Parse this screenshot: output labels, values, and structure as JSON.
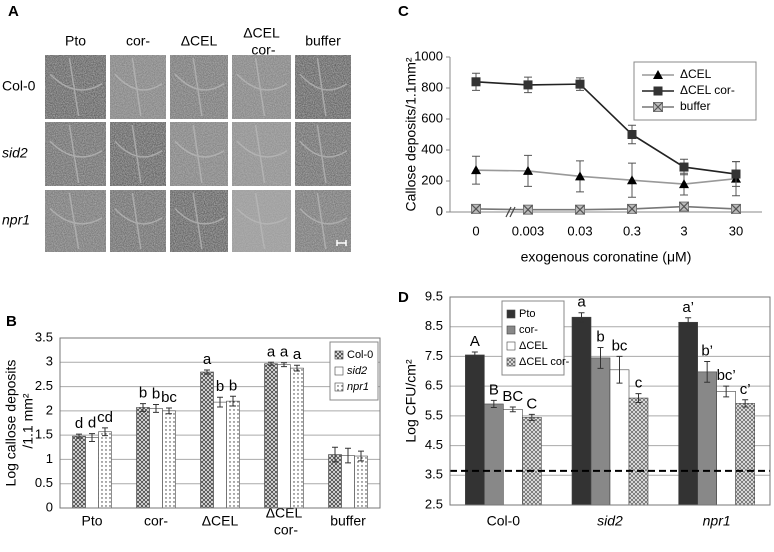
{
  "image_panel": {
    "panel": "A",
    "columns": [
      "Pto",
      "cor-",
      "ΔCEL",
      "ΔCEL cor-",
      "buffer"
    ],
    "rows": [
      "Col-0",
      "sid2",
      "npr1"
    ],
    "italic_rows": [
      false,
      true,
      true
    ]
  },
  "chart_data": [
    {
      "type": "bar",
      "panel": "B",
      "y_label": "Log callose deposits /1.1 mm²",
      "categories": [
        "Pto",
        "cor-",
        "ΔCEL",
        "ΔCEL cor-",
        "buffer"
      ],
      "ylim": [
        0,
        3.5
      ],
      "yticks": [
        0,
        0.5,
        1,
        1.5,
        2,
        2.5,
        3,
        3.5
      ],
      "grid": true,
      "legend": "top-right",
      "series": [
        {
          "name": "Col-0",
          "color": "#555555",
          "pattern": "crosshatch",
          "italic": false,
          "values": [
            1.48,
            2.07,
            2.8,
            2.97,
            1.1
          ],
          "errors": [
            0.04,
            0.08,
            0.04,
            0.03,
            0.15
          ],
          "letters": [
            "d",
            "b",
            "a",
            "a",
            null
          ]
        },
        {
          "name": "sid2",
          "color": "#ffffff",
          "pattern": "none",
          "italic": true,
          "values": [
            1.45,
            2.05,
            2.18,
            2.95,
            1.08
          ],
          "errors": [
            0.08,
            0.08,
            0.1,
            0.04,
            0.15
          ],
          "letters": [
            "d",
            "b",
            "b",
            "a",
            null
          ]
        },
        {
          "name": "npr1",
          "color": "#333333",
          "pattern": "dots",
          "italic": true,
          "values": [
            1.57,
            2.0,
            2.2,
            2.88,
            1.07
          ],
          "errors": [
            0.08,
            0.06,
            0.1,
            0.06,
            0.1
          ],
          "letters": [
            "cd",
            "bc",
            "b",
            "a",
            null
          ]
        }
      ]
    },
    {
      "type": "line",
      "panel": "C",
      "y_label": "Callose deposits/1.1mm²",
      "x_label": "exogenous coronatine (μM)",
      "categories": [
        "0",
        "0.003",
        "0.03",
        "0.3",
        "3",
        "30"
      ],
      "ylim": [
        0,
        1000
      ],
      "yticks": [
        0,
        200,
        400,
        600,
        800,
        1000
      ],
      "grid": false,
      "legend": "top-right",
      "series": [
        {
          "name": "ΔCEL",
          "color": "#999999",
          "marker": "triangle",
          "values": [
            270,
            265,
            230,
            205,
            180,
            215
          ],
          "errors": [
            90,
            100,
            100,
            110,
            70,
            110
          ]
        },
        {
          "name": "ΔCEL cor-",
          "color": "#222222",
          "marker": "square",
          "values": [
            840,
            820,
            825,
            500,
            290,
            245
          ],
          "errors": [
            55,
            50,
            40,
            60,
            50,
            80
          ]
        },
        {
          "name": "buffer",
          "color": "#777777",
          "marker": "xsquare",
          "values": [
            20,
            15,
            15,
            20,
            35,
            20
          ],
          "errors": [
            10,
            10,
            10,
            10,
            15,
            10
          ]
        }
      ]
    },
    {
      "type": "bar",
      "panel": "D",
      "y_label": "Log CFU/cm²",
      "categories": [
        "Col-0",
        "sid2",
        "npr1"
      ],
      "italic_categories": [
        false,
        true,
        true
      ],
      "ylim": [
        2.5,
        9.5
      ],
      "yticks": [
        2.5,
        3.5,
        4.5,
        5.5,
        6.5,
        7.5,
        8.5,
        9.5
      ],
      "grid": true,
      "legend": "top-left",
      "reference_line": 3.65,
      "series": [
        {
          "name": "Pto",
          "color": "#333333",
          "pattern": "none",
          "values": [
            7.55,
            8.82,
            8.65
          ],
          "errors": [
            0.1,
            0.15,
            0.15
          ],
          "letters": [
            "A",
            "a",
            "a’"
          ]
        },
        {
          "name": "cor-",
          "color": "#888888",
          "pattern": "none",
          "values": [
            5.9,
            7.45,
            6.98
          ],
          "errors": [
            0.12,
            0.35,
            0.35
          ],
          "letters": [
            "B",
            "b",
            "b’"
          ]
        },
        {
          "name": "ΔCEL",
          "color": "#ffffff",
          "pattern": "none",
          "values": [
            5.72,
            7.05,
            6.32
          ],
          "errors": [
            0.08,
            0.45,
            0.18
          ],
          "letters": [
            "BC",
            "bc",
            "bc’"
          ]
        },
        {
          "name": "ΔCEL cor-",
          "color": "#777777",
          "pattern": "crosshatch",
          "values": [
            5.45,
            6.1,
            5.92
          ],
          "errors": [
            0.1,
            0.15,
            0.12
          ],
          "letters": [
            "C",
            "c",
            "c’"
          ]
        }
      ]
    }
  ]
}
